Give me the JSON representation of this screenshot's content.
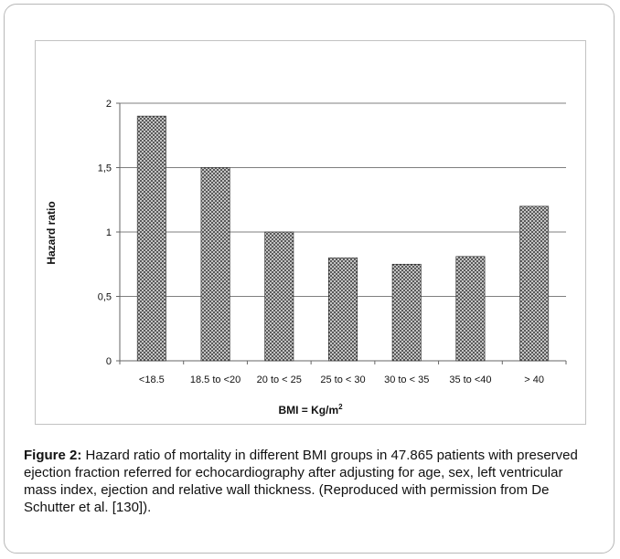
{
  "chart_data": {
    "type": "bar",
    "categories": [
      "<18.5",
      "18.5 to <20",
      "20 to < 25",
      "25 to < 30",
      "30 to < 35",
      "35 to <40",
      "> 40"
    ],
    "values": [
      1.9,
      1.5,
      1.0,
      0.8,
      0.75,
      0.81,
      1.2
    ],
    "ylabel": "Hazard ratio",
    "xlabel_base": "BMI = Kg/m",
    "xlabel_sup": "2",
    "ylim": [
      0,
      2
    ],
    "yticks": [
      0,
      0.5,
      1,
      1.5,
      2
    ],
    "ytick_labels": [
      "0",
      "0,5",
      "1",
      "1,5",
      "2"
    ],
    "grid": true,
    "bar_pattern": "dark crosshatch",
    "colors": {
      "bar_fill": "#3a3a3a",
      "bar_pattern_light": "#d9d9d9",
      "grid": "#7f7f7f"
    }
  },
  "caption": {
    "label": "Figure 2:",
    "text": " Hazard ratio of mortality in different BMI groups in 47.865 patients with preserved ejection fraction referred for echocardiography after adjusting for age, sex, left ventricular mass index, ejection and relative wall thickness. (Reproduced with permission from De Schutter et al. [130])."
  }
}
